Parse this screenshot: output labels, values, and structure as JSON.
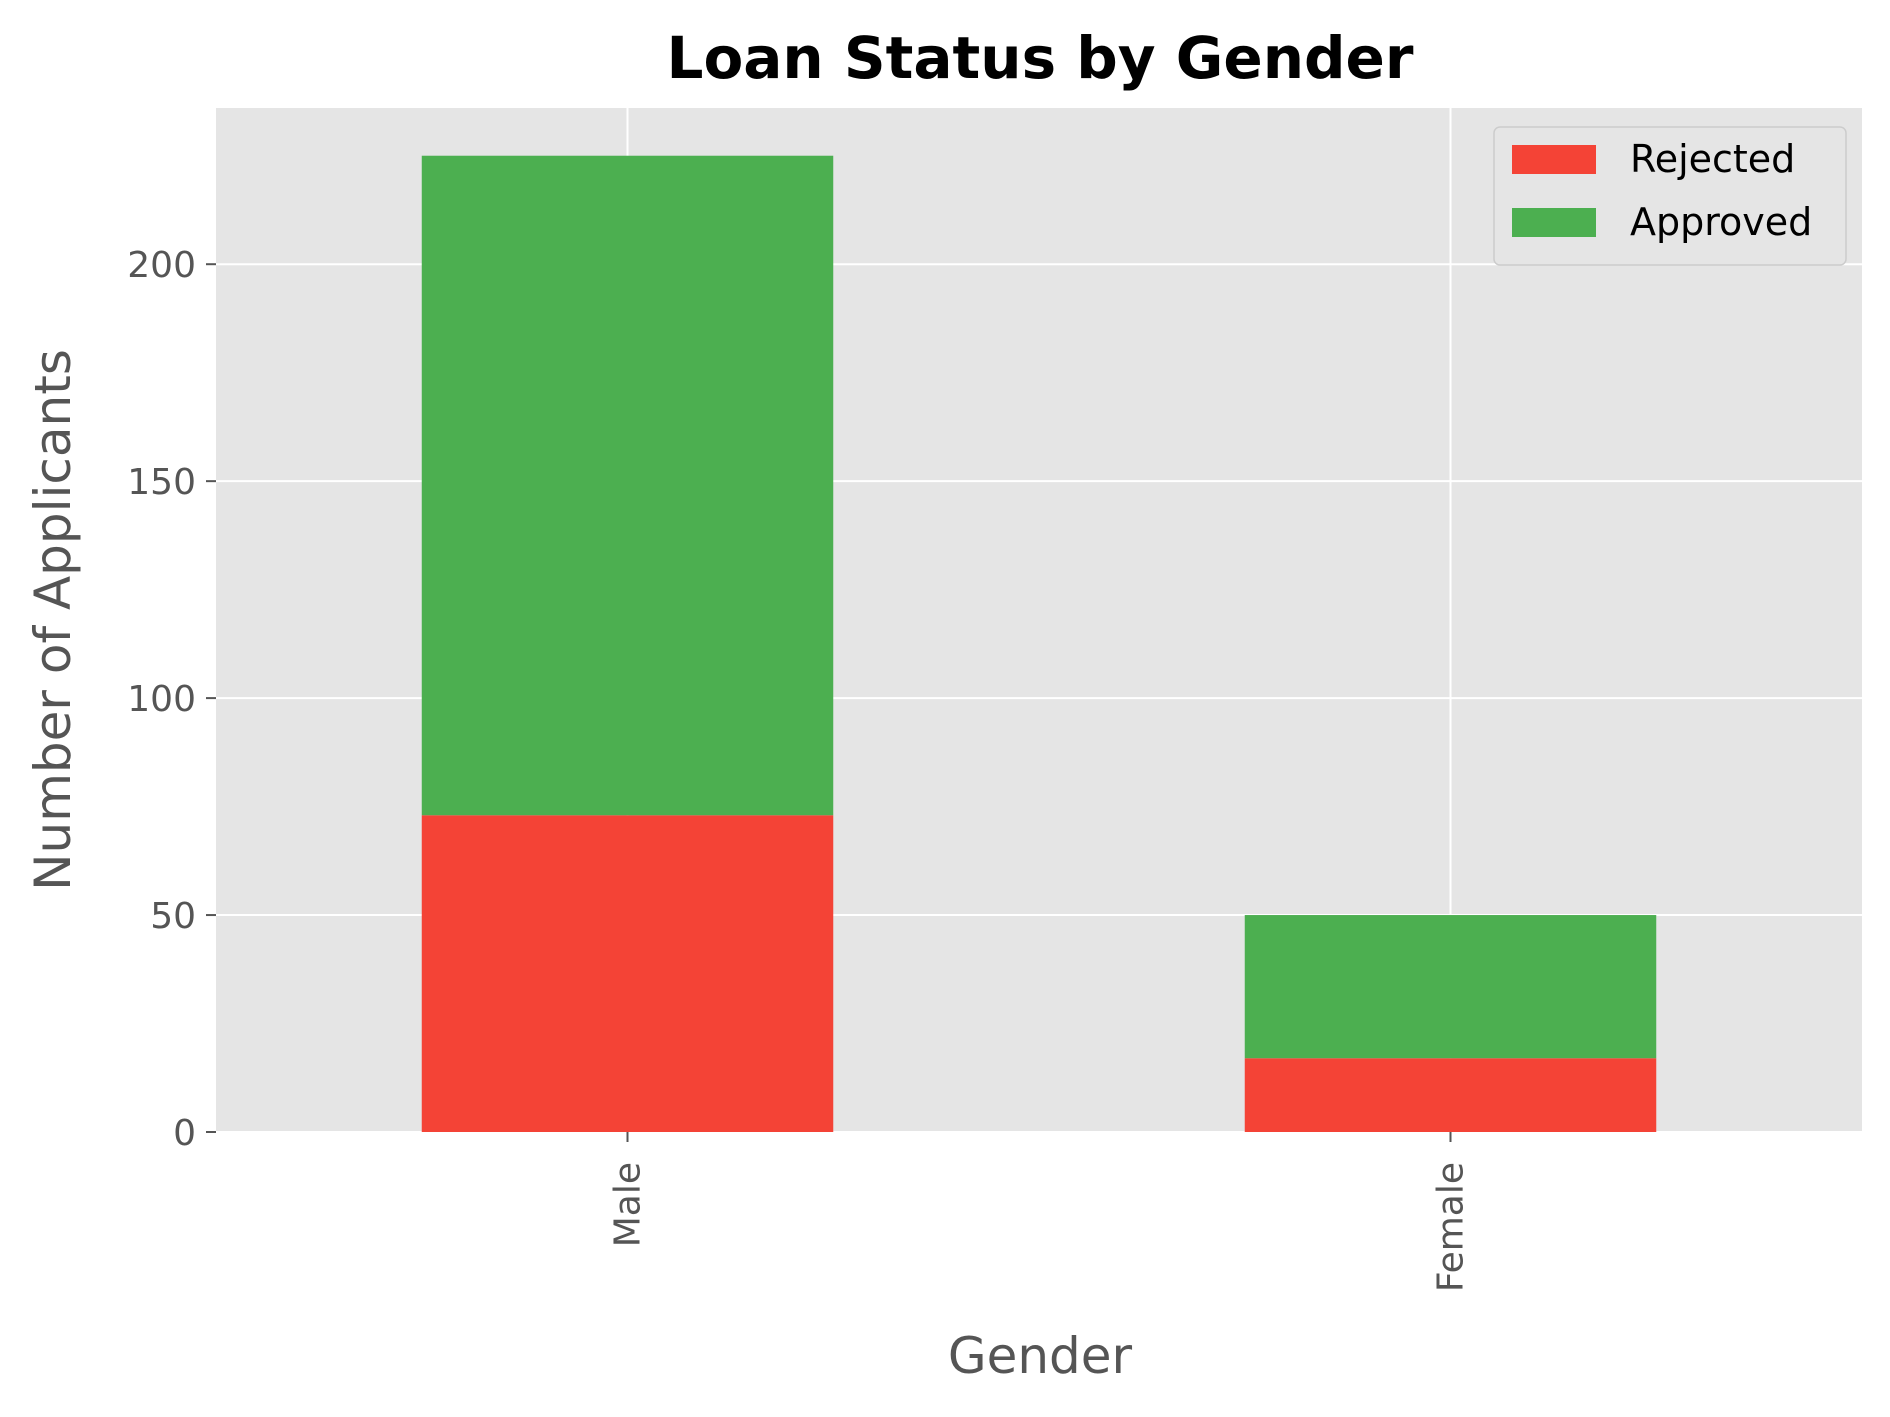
{
  "chart_data": {
    "type": "bar",
    "stacked": true,
    "title": "Loan Status by Gender",
    "xlabel": "Gender",
    "ylabel": "Number of Applicants",
    "categories": [
      "Male",
      "Female"
    ],
    "series": [
      {
        "name": "Rejected",
        "values": [
          73,
          17
        ],
        "color": "#F44336"
      },
      {
        "name": "Approved",
        "values": [
          152,
          33
        ],
        "color": "#4CAF50"
      }
    ],
    "ylim": [
      0,
      236
    ],
    "yticks": [
      0,
      50,
      100,
      150,
      200
    ],
    "grid": true,
    "legend_position": "top-right",
    "plot_background": "#E5E5E5",
    "grid_color": "#FFFFFF",
    "tick_label_color": "#555555"
  }
}
